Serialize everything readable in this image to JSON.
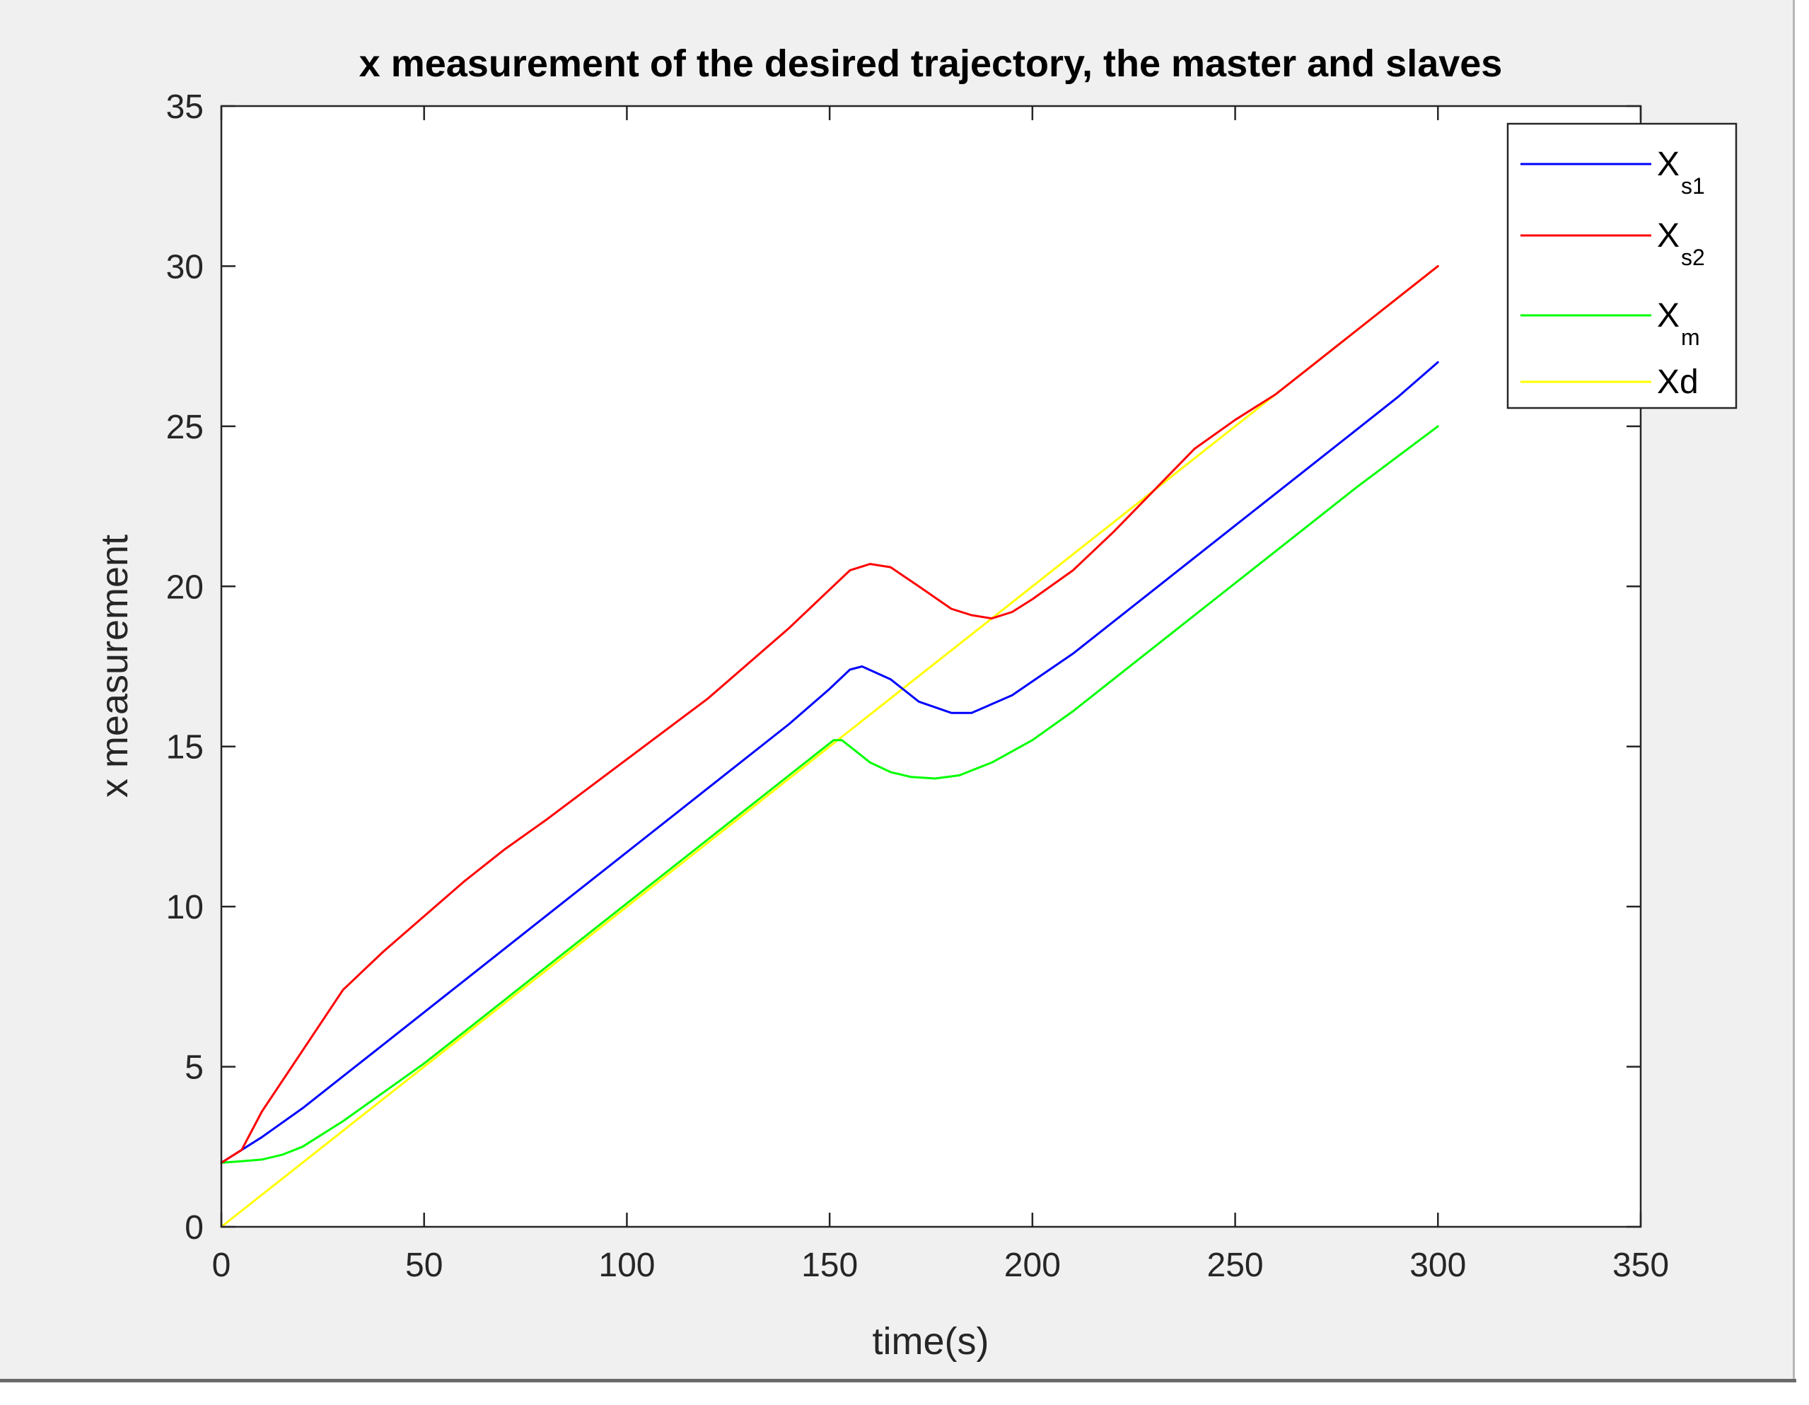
{
  "chart_data": {
    "type": "line",
    "title": "x measurement of the desired trajectory, the master and slaves",
    "xlabel": "time(s)",
    "ylabel": "x measurement",
    "xlim": [
      0,
      350
    ],
    "ylim": [
      0,
      35
    ],
    "xticks": [
      "0",
      "50",
      "100",
      "150",
      "200",
      "250",
      "300",
      "350"
    ],
    "yticks": [
      "0",
      "5",
      "10",
      "15",
      "20",
      "25",
      "30",
      "35"
    ],
    "grid": false,
    "legend_position": "top-right",
    "series": [
      {
        "name": "Xs1",
        "name_main": "X",
        "name_sub": "s1",
        "color": "#0000ff",
        "x": [
          0,
          10,
          20,
          40,
          60,
          80,
          100,
          120,
          140,
          150,
          155,
          158,
          165,
          172,
          180,
          185,
          195,
          210,
          230,
          250,
          270,
          290,
          300
        ],
        "y": [
          2,
          2.8,
          3.7,
          5.7,
          7.7,
          9.7,
          11.7,
          13.7,
          15.7,
          16.8,
          17.4,
          17.5,
          17.1,
          16.4,
          16.05,
          16.05,
          16.6,
          17.9,
          19.9,
          21.9,
          23.9,
          25.9,
          27
        ]
      },
      {
        "name": "Xs2",
        "name_main": "X",
        "name_sub": "s2",
        "color": "#ff0000",
        "x": [
          0,
          5,
          10,
          20,
          30,
          40,
          50,
          60,
          70,
          80,
          100,
          120,
          140,
          150,
          155,
          160,
          165,
          172,
          180,
          185,
          190,
          195,
          200,
          210,
          220,
          230,
          240,
          250,
          260,
          270,
          280,
          290,
          300
        ],
        "y": [
          2,
          2.4,
          3.6,
          5.5,
          7.4,
          8.6,
          9.7,
          10.8,
          11.8,
          12.7,
          14.6,
          16.5,
          18.7,
          19.9,
          20.5,
          20.7,
          20.6,
          20.0,
          19.3,
          19.1,
          19.0,
          19.2,
          19.6,
          20.5,
          21.7,
          23.0,
          24.3,
          25.2,
          26.0,
          27.0,
          28.0,
          29.0,
          30
        ]
      },
      {
        "name": "Xm",
        "name_main": "X",
        "name_sub": "m",
        "color": "#00ff00",
        "x": [
          0,
          5,
          10,
          15,
          20,
          30,
          40,
          50,
          60,
          80,
          100,
          120,
          140,
          151,
          153,
          155,
          160,
          165,
          170,
          176,
          182,
          190,
          200,
          210,
          220,
          240,
          260,
          280,
          300
        ],
        "y": [
          2,
          2.05,
          2.1,
          2.25,
          2.5,
          3.3,
          4.2,
          5.1,
          6.1,
          8.1,
          10.1,
          12.1,
          14.1,
          15.2,
          15.2,
          15.0,
          14.5,
          14.2,
          14.05,
          14.0,
          14.1,
          14.5,
          15.2,
          16.1,
          17.1,
          19.1,
          21.1,
          23.1,
          25
        ]
      },
      {
        "name": "Xd",
        "name_main": "Xd",
        "name_sub": "",
        "color": "#ffff00",
        "x": [
          0,
          300
        ],
        "y": [
          0,
          30
        ]
      }
    ]
  }
}
